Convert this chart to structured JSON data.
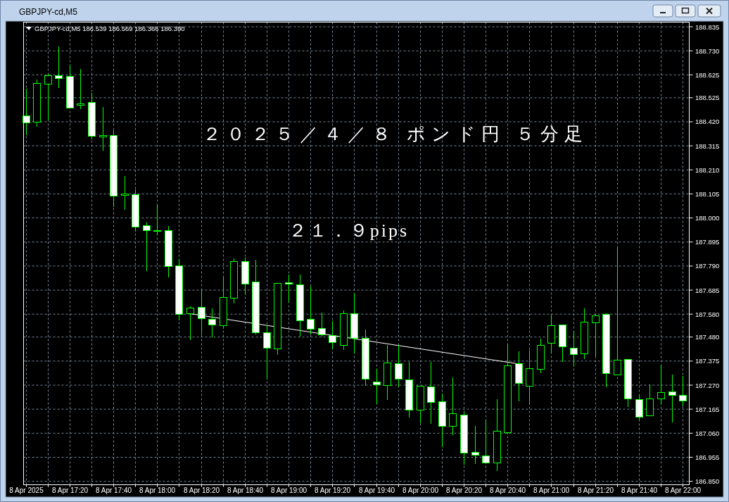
{
  "chart_data": {
    "type": "candlestick",
    "title": "２０２５／４／８ ポンド円 ５分足",
    "annotations": [
      "GBPJPY-cd,M5",
      "GBPJPY-cd,M5 186.539 186.569 186.366 186.390",
      "２１．９pips"
    ],
    "x": [
      "2025-04-08T17:00",
      "2025-04-08T17:05",
      "2025-04-08T17:10",
      "2025-04-08T17:15",
      "2025-04-08T17:20",
      "2025-04-08T17:25",
      "2025-04-08T17:30",
      "2025-04-08T17:35",
      "2025-04-08T17:40",
      "2025-04-08T17:45",
      "2025-04-08T17:50",
      "2025-04-08T17:55",
      "2025-04-08T18:00",
      "2025-04-08T18:05",
      "2025-04-08T18:10",
      "2025-04-08T18:15",
      "2025-04-08T18:20",
      "2025-04-08T18:25",
      "2025-04-08T18:30",
      "2025-04-08T18:35",
      "2025-04-08T18:40",
      "2025-04-08T18:45",
      "2025-04-08T18:50",
      "2025-04-08T18:55",
      "2025-04-08T19:00",
      "2025-04-08T19:05",
      "2025-04-08T19:10",
      "2025-04-08T19:15",
      "2025-04-08T19:20",
      "2025-04-08T19:25",
      "2025-04-08T19:30",
      "2025-04-08T19:35",
      "2025-04-08T19:40",
      "2025-04-08T19:45",
      "2025-04-08T19:50",
      "2025-04-08T19:55",
      "2025-04-08T20:00",
      "2025-04-08T20:05",
      "2025-04-08T20:10",
      "2025-04-08T20:15",
      "2025-04-08T20:20",
      "2025-04-08T20:25",
      "2025-04-08T20:30",
      "2025-04-08T20:35",
      "2025-04-08T20:40",
      "2025-04-08T20:45",
      "2025-04-08T20:50",
      "2025-04-08T20:55",
      "2025-04-08T21:00",
      "2025-04-08T21:05",
      "2025-04-08T21:10",
      "2025-04-08T21:15",
      "2025-04-08T21:20",
      "2025-04-08T21:25",
      "2025-04-08T21:30",
      "2025-04-08T21:35",
      "2025-04-08T21:40",
      "2025-04-08T21:45",
      "2025-04-08T21:50",
      "2025-04-08T21:55",
      "2025-04-08T22:00"
    ],
    "ohlc": [
      [
        188.447,
        188.565,
        188.363,
        188.416
      ],
      [
        188.418,
        188.604,
        188.398,
        188.589
      ],
      [
        188.583,
        188.628,
        188.425,
        188.62
      ],
      [
        188.62,
        188.749,
        188.566,
        188.61
      ],
      [
        188.617,
        188.668,
        188.478,
        188.481
      ],
      [
        188.495,
        188.651,
        188.474,
        188.495
      ],
      [
        188.505,
        188.546,
        188.343,
        188.358
      ],
      [
        188.357,
        188.484,
        188.295,
        188.357
      ],
      [
        188.36,
        188.384,
        188.047,
        188.096
      ],
      [
        188.099,
        188.182,
        188.037,
        188.104
      ],
      [
        188.102,
        188.125,
        187.939,
        187.961
      ],
      [
        187.965,
        187.98,
        187.768,
        187.944
      ],
      [
        187.944,
        188.06,
        187.924,
        187.944
      ],
      [
        187.945,
        187.965,
        187.739,
        187.788
      ],
      [
        187.791,
        187.819,
        187.552,
        187.578
      ],
      [
        187.583,
        187.614,
        187.467,
        187.607
      ],
      [
        187.609,
        187.682,
        187.49,
        187.56
      ],
      [
        187.557,
        187.606,
        187.48,
        187.532
      ],
      [
        187.53,
        187.739,
        187.516,
        187.653
      ],
      [
        187.65,
        187.824,
        187.626,
        187.809
      ],
      [
        187.809,
        187.826,
        187.663,
        187.711
      ],
      [
        187.72,
        187.817,
        187.49,
        187.498
      ],
      [
        187.499,
        187.532,
        187.295,
        187.433
      ],
      [
        187.427,
        187.714,
        187.401,
        187.714
      ],
      [
        187.717,
        187.752,
        187.634,
        187.711
      ],
      [
        187.708,
        187.752,
        187.482,
        187.551
      ],
      [
        187.557,
        187.699,
        187.49,
        187.514
      ],
      [
        187.517,
        187.588,
        187.482,
        187.489
      ],
      [
        187.487,
        187.549,
        187.426,
        187.455
      ],
      [
        187.443,
        187.595,
        187.424,
        187.581
      ],
      [
        187.581,
        187.67,
        187.408,
        187.474
      ],
      [
        187.474,
        187.514,
        187.268,
        187.295
      ],
      [
        187.283,
        187.34,
        187.188,
        187.272
      ],
      [
        187.268,
        187.444,
        187.205,
        187.366
      ],
      [
        187.363,
        187.444,
        187.262,
        187.295
      ],
      [
        187.292,
        187.37,
        187.128,
        187.16
      ],
      [
        187.16,
        187.265,
        187.103,
        187.265
      ],
      [
        187.262,
        187.372,
        187.1,
        187.194
      ],
      [
        187.197,
        187.234,
        187.001,
        187.089
      ],
      [
        187.089,
        187.303,
        187.052,
        187.145
      ],
      [
        187.138,
        187.157,
        186.923,
        186.972
      ],
      [
        186.975,
        187.093,
        186.926,
        186.963
      ],
      [
        186.96,
        187.116,
        186.926,
        186.929
      ],
      [
        186.929,
        187.21,
        186.895,
        187.068
      ],
      [
        187.063,
        187.448,
        187.054,
        187.354
      ],
      [
        187.363,
        187.419,
        187.199,
        187.277
      ],
      [
        187.265,
        187.424,
        187.185,
        187.342
      ],
      [
        187.339,
        187.472,
        187.322,
        187.443
      ],
      [
        187.452,
        187.576,
        187.407,
        187.529
      ],
      [
        187.533,
        187.533,
        187.371,
        187.437
      ],
      [
        187.431,
        187.508,
        187.35,
        187.403
      ],
      [
        187.406,
        187.606,
        187.384,
        187.545
      ],
      [
        187.542,
        187.585,
        187.395,
        187.573
      ],
      [
        187.579,
        187.585,
        187.261,
        187.32
      ],
      [
        187.314,
        187.875,
        187.314,
        187.379
      ],
      [
        187.382,
        187.382,
        187.175,
        187.209
      ],
      [
        187.206,
        187.231,
        187.117,
        187.129
      ],
      [
        187.135,
        187.274,
        187.135,
        187.209
      ],
      [
        187.209,
        187.36,
        187.185,
        187.237
      ],
      [
        187.24,
        187.315,
        187.108,
        187.225
      ],
      [
        187.225,
        187.311,
        187.177,
        187.2
      ]
    ],
    "color": "#00ff00",
    "colors": [
      "#ffffff",
      "#000000",
      "#000000",
      "#ffffff",
      "#ffffff",
      "#000000",
      "#ffffff",
      "#000000",
      "#ffffff",
      "#000000",
      "#ffffff",
      "#ffffff",
      "#000000",
      "#ffffff",
      "#ffffff",
      "#000000",
      "#ffffff",
      "#ffffff",
      "#000000",
      "#000000",
      "#ffffff",
      "#ffffff",
      "#ffffff",
      "#000000",
      "#ffffff",
      "#ffffff",
      "#ffffff",
      "#ffffff",
      "#ffffff",
      "#000000",
      "#ffffff",
      "#ffffff",
      "#ffffff",
      "#000000",
      "#ffffff",
      "#ffffff",
      "#000000",
      "#ffffff",
      "#ffffff",
      "#000000",
      "#ffffff",
      "#ffffff",
      "#ffffff",
      "#000000",
      "#000000",
      "#ffffff",
      "#000000",
      "#000000",
      "#000000",
      "#ffffff",
      "#ffffff",
      "#000000",
      "#000000",
      "#ffffff",
      "#000000",
      "#ffffff",
      "#ffffff",
      "#000000",
      "#000000",
      "#ffffff",
      "#ffffff"
    ],
    "series": [
      {
        "type": "line",
        "color": "#ffffff",
        "x": [
          "2025-04-08T18:15",
          "2025-04-08T20:45"
        ],
        "values": [
          187.582,
          187.363
        ]
      }
    ],
    "xlim": [
      "2025-04-08T16:59",
      "2025-04-08T22:03"
    ],
    "xticks": [
      {
        "value": "2025-04-08T17:00",
        "label": "8 Apr 2025"
      },
      {
        "value": "2025-04-08T17:10",
        "label": null
      },
      {
        "value": "2025-04-08T17:20",
        "label": "8 Apr 17:20"
      },
      {
        "value": "2025-04-08T17:30",
        "label": null
      },
      {
        "value": "2025-04-08T17:40",
        "label": "8 Apr 17:40"
      },
      {
        "value": "2025-04-08T17:50",
        "label": null
      },
      {
        "value": "2025-04-08T18:00",
        "label": "8 Apr 18:00"
      },
      {
        "value": "2025-04-08T18:10",
        "label": null
      },
      {
        "value": "2025-04-08T18:20",
        "label": "8 Apr 18:20"
      },
      {
        "value": "2025-04-08T18:30",
        "label": null
      },
      {
        "value": "2025-04-08T18:40",
        "label": "8 Apr 18:40"
      },
      {
        "value": "2025-04-08T18:50",
        "label": null
      },
      {
        "value": "2025-04-08T19:00",
        "label": "8 Apr 19:00"
      },
      {
        "value": "2025-04-08T19:10",
        "label": null
      },
      {
        "value": "2025-04-08T19:20",
        "label": "8 Apr 19:20"
      },
      {
        "value": "2025-04-08T19:30",
        "label": null
      },
      {
        "value": "2025-04-08T19:40",
        "label": "8 Apr 19:40"
      },
      {
        "value": "2025-04-08T19:50",
        "label": null
      },
      {
        "value": "2025-04-08T20:00",
        "label": "8 Apr 20:00"
      },
      {
        "value": "2025-04-08T20:10",
        "label": null
      },
      {
        "value": "2025-04-08T20:20",
        "label": "8 Apr 20:20"
      },
      {
        "value": "2025-04-08T20:30",
        "label": null
      },
      {
        "value": "2025-04-08T20:40",
        "label": "8 Apr 20:40"
      },
      {
        "value": "2025-04-08T20:50",
        "label": null
      },
      {
        "value": "2025-04-08T21:00",
        "label": "8 Apr 21:00"
      },
      {
        "value": "2025-04-08T21:10",
        "label": null
      },
      {
        "value": "2025-04-08T21:20",
        "label": "8 Apr 21:20"
      },
      {
        "value": "2025-04-08T21:30",
        "label": null
      },
      {
        "value": "2025-04-08T21:40",
        "label": "8 Apr 21:40"
      },
      {
        "value": "2025-04-08T21:50",
        "label": null
      },
      {
        "value": "2025-04-08T22:00",
        "label": "8 Apr 22:00"
      }
    ],
    "ylim": [
      186.835,
      188.855
    ],
    "yticks": [
      {
        "value": 188.835,
        "label": "188.835"
      },
      {
        "value": 188.73,
        "label": "188.730"
      },
      {
        "value": 188.625,
        "label": "188.625"
      },
      {
        "value": 188.525,
        "label": "188.525"
      },
      {
        "value": 188.42,
        "label": "188.420"
      },
      {
        "value": 188.315,
        "label": "188.315"
      },
      {
        "value": 188.21,
        "label": "188.210"
      },
      {
        "value": 188.105,
        "label": "188.105"
      },
      {
        "value": 188.0,
        "label": "188.000"
      },
      {
        "value": 187.895,
        "label": "187.895"
      },
      {
        "value": 187.79,
        "label": "187.790"
      },
      {
        "value": 187.685,
        "label": "187.685"
      },
      {
        "value": 187.58,
        "label": "187.580"
      },
      {
        "value": 187.48,
        "label": "187.480"
      },
      {
        "value": 187.375,
        "label": "187.375"
      },
      {
        "value": 187.27,
        "label": "187.270"
      },
      {
        "value": 187.165,
        "label": "187.165"
      },
      {
        "value": 187.06,
        "label": "187.060"
      },
      {
        "value": 186.955,
        "label": "186.955"
      },
      {
        "value": 186.85,
        "label": "186.850"
      }
    ],
    "grid": true
  }
}
